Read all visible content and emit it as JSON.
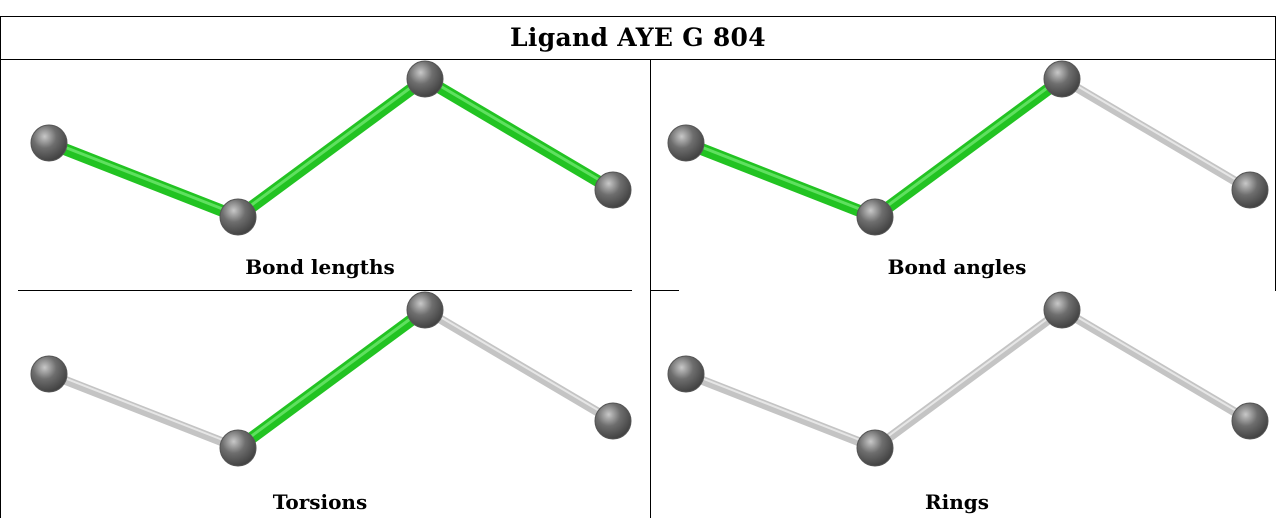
{
  "title": "Ligand AYE G 804",
  "colors": {
    "highlight_bond": "#22c322",
    "plain_bond": "#c4c4c4",
    "atom": "#6e6e6e",
    "border": "#000000"
  },
  "panels": [
    {
      "caption": "Bond lengths",
      "bonds": [
        "highlight",
        "highlight",
        "highlight"
      ]
    },
    {
      "caption": "Bond angles",
      "bonds": [
        "highlight",
        "highlight",
        "plain"
      ]
    },
    {
      "caption": "Torsions",
      "bonds": [
        "plain",
        "highlight",
        "plain"
      ]
    },
    {
      "caption": "Rings",
      "bonds": [
        "plain",
        "plain",
        "plain"
      ]
    }
  ]
}
